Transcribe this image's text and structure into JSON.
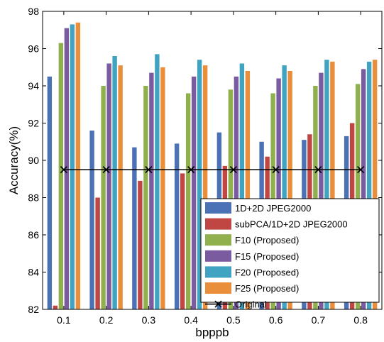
{
  "chart_data": {
    "type": "bar",
    "title": "",
    "xlabel": "bpppb",
    "ylabel": "Accuracy(%)",
    "categories": [
      "0.1",
      "0.2",
      "0.3",
      "0.4",
      "0.5",
      "0.6",
      "0.7",
      "0.8"
    ],
    "ylim": [
      82,
      98
    ],
    "yticks": [
      "82",
      "84",
      "86",
      "88",
      "90",
      "92",
      "94",
      "96",
      "98"
    ],
    "grid": false,
    "legend_position": "bottom-right",
    "series": [
      {
        "name": "1D+2D JPEG2000",
        "color": "#4a72b5",
        "values": [
          94.5,
          91.6,
          90.7,
          90.9,
          91.5,
          91.0,
          91.1,
          91.3
        ]
      },
      {
        "name": "subPCA/1D+2D JPEG2000",
        "color": "#bf4642",
        "values": [
          82.2,
          88.0,
          88.9,
          89.3,
          89.7,
          90.2,
          91.4,
          92.0
        ]
      },
      {
        "name": "F10 (Proposed)",
        "color": "#8fb04d",
        "values": [
          96.3,
          94.0,
          94.0,
          93.6,
          93.8,
          93.6,
          94.0,
          94.1
        ]
      },
      {
        "name": "F15 (Proposed)",
        "color": "#7a5ba0",
        "values": [
          97.1,
          95.2,
          94.7,
          94.5,
          94.5,
          94.4,
          94.7,
          94.9
        ]
      },
      {
        "name": "F20 (Proposed)",
        "color": "#3fa3c1",
        "values": [
          97.3,
          95.6,
          95.7,
          95.4,
          95.2,
          95.1,
          95.4,
          95.3
        ]
      },
      {
        "name": "F25 (Proposed)",
        "color": "#e98e3a",
        "values": [
          97.4,
          95.1,
          95.0,
          95.1,
          94.8,
          94.8,
          95.3,
          95.4
        ]
      }
    ],
    "line_series": {
      "name": "Original",
      "color": "#000000",
      "marker": "x",
      "values": [
        89.5,
        89.5,
        89.5,
        89.5,
        89.5,
        89.5,
        89.5,
        89.5
      ]
    }
  }
}
